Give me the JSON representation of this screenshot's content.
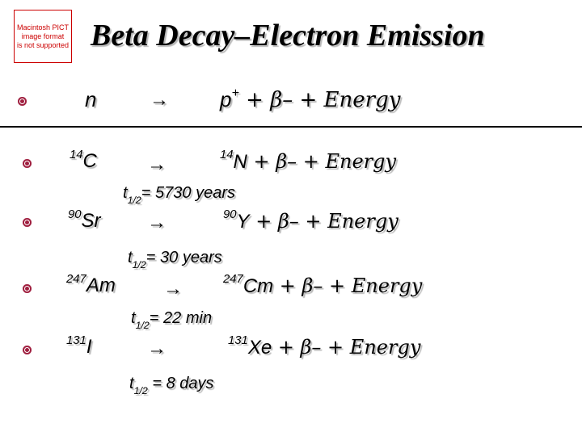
{
  "placeholder_image": {
    "lines": [
      "Macintosh PICT",
      "image format",
      "is not supported"
    ]
  },
  "title": "Beta Decay–Electron Emission",
  "arrow": "→",
  "rows": [
    {
      "lhs_sup": "",
      "lhs": "n",
      "rhs_sup": "",
      "rhs": "p",
      "rhs_charge": "+",
      "tail": " +  β– +  Energy",
      "half_life": null
    },
    {
      "lhs_sup": "14",
      "lhs": "C",
      "rhs_sup": "14",
      "rhs": "N",
      "tail": " +  β–  +  Energy",
      "half_life": {
        "sub": "1/2",
        "text": "= 5730 years"
      }
    },
    {
      "lhs_sup": "90",
      "lhs": "Sr",
      "rhs_sup": "90",
      "rhs": "Y",
      "tail": " +  β– +  Energy",
      "half_life": {
        "sub": "1/2",
        "text": "= 30 years"
      }
    },
    {
      "lhs_sup": "247",
      "lhs": "Am",
      "rhs_sup": "247",
      "rhs": "Cm",
      "tail": " +  β–  +  Energy",
      "half_life": {
        "sub": "1/2",
        "text": "= 22 min"
      }
    },
    {
      "lhs_sup": "131",
      "lhs": "I",
      "rhs_sup": "131",
      "rhs": "Xe",
      "tail": " +  β–  +  Energy",
      "half_life": {
        "sub": "1/2",
        "text": " = 8 days"
      }
    }
  ]
}
